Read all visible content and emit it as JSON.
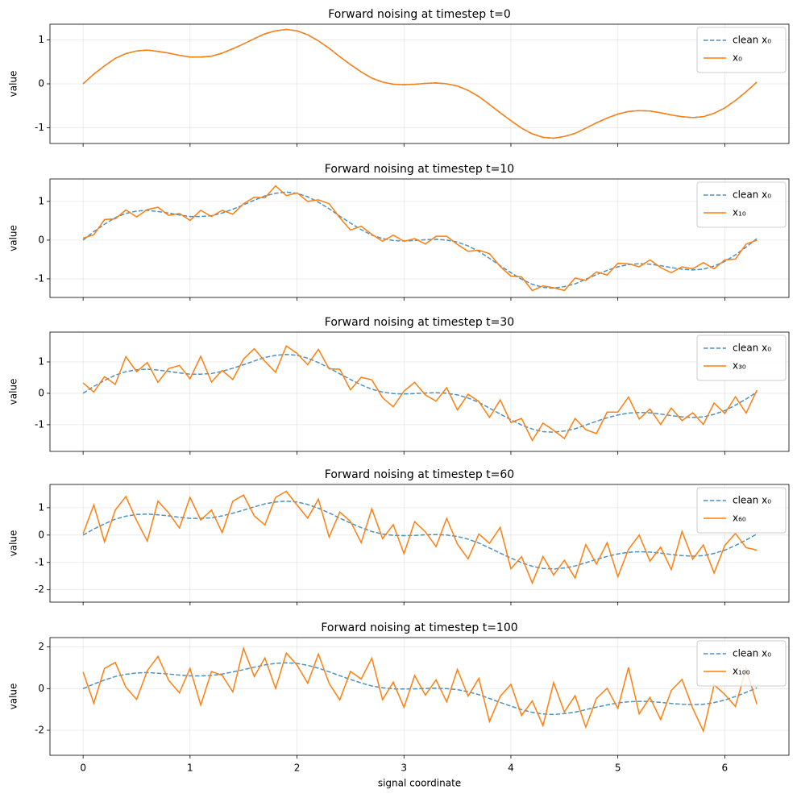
{
  "chart_data": [
    {
      "type": "line",
      "title": "Forward noising at timestep t=0",
      "ylabel": "value",
      "x": [
        0,
        0.1,
        0.2,
        0.3,
        0.4,
        0.5,
        0.6,
        0.7,
        0.8,
        0.9,
        1.0,
        1.1,
        1.2,
        1.3,
        1.4,
        1.5,
        1.6,
        1.7,
        1.8,
        1.9,
        2.0,
        2.1,
        2.2,
        2.3,
        2.4,
        2.5,
        2.6,
        2.7,
        2.8,
        2.9,
        3.0,
        3.1,
        3.2,
        3.3,
        3.4,
        3.5,
        3.6,
        3.7,
        3.8,
        3.9,
        4.0,
        4.1,
        4.2,
        4.3,
        4.4,
        4.5,
        4.6,
        4.7,
        4.8,
        4.9,
        5.0,
        5.1,
        5.2,
        5.3,
        5.4,
        5.5,
        5.6,
        5.7,
        5.8,
        5.9,
        6.0,
        6.1,
        6.2,
        6.3
      ],
      "series": [
        {
          "name": "clean x₀",
          "color": "#1f77b4",
          "dashed": true,
          "values": [
            0,
            0.22,
            0.41,
            0.58,
            0.69,
            0.75,
            0.77,
            0.74,
            0.7,
            0.65,
            0.61,
            0.61,
            0.63,
            0.7,
            0.8,
            0.91,
            1.03,
            1.14,
            1.21,
            1.24,
            1.21,
            1.12,
            0.98,
            0.81,
            0.62,
            0.44,
            0.27,
            0.13,
            0.04,
            -0.01,
            -0.02,
            -0.01,
            0.01,
            0.02,
            0,
            -0.05,
            -0.15,
            -0.29,
            -0.47,
            -0.66,
            -0.84,
            -1.01,
            -1.14,
            -1.22,
            -1.24,
            -1.2,
            -1.13,
            -1.01,
            -0.89,
            -0.78,
            -0.69,
            -0.63,
            -0.61,
            -0.62,
            -0.66,
            -0.71,
            -0.75,
            -0.77,
            -0.75,
            -0.67,
            -0.55,
            -0.38,
            -0.18,
            0.04
          ]
        },
        {
          "name": "x₀",
          "color": "#ff7f0e",
          "values": [
            0,
            0.22,
            0.41,
            0.58,
            0.69,
            0.75,
            0.77,
            0.74,
            0.7,
            0.65,
            0.61,
            0.61,
            0.63,
            0.7,
            0.8,
            0.91,
            1.03,
            1.14,
            1.21,
            1.24,
            1.21,
            1.12,
            0.98,
            0.81,
            0.62,
            0.44,
            0.27,
            0.13,
            0.04,
            -0.01,
            -0.02,
            -0.01,
            0.01,
            0.02,
            0,
            -0.05,
            -0.15,
            -0.29,
            -0.47,
            -0.66,
            -0.84,
            -1.01,
            -1.14,
            -1.22,
            -1.24,
            -1.2,
            -1.13,
            -1.01,
            -0.89,
            -0.78,
            -0.69,
            -0.63,
            -0.61,
            -0.62,
            -0.66,
            -0.71,
            -0.75,
            -0.77,
            -0.75,
            -0.67,
            -0.55,
            -0.38,
            -0.18,
            0.04
          ]
        }
      ],
      "xlim": [
        -0.31,
        6.6
      ],
      "xticks": [
        0,
        1,
        2,
        3,
        4,
        5,
        6
      ],
      "ylim": [
        -1.36,
        1.36
      ],
      "yticks": [
        -1,
        0,
        1
      ],
      "grid": true,
      "legend": "upper right"
    },
    {
      "type": "line",
      "title": "Forward noising at timestep t=10",
      "ylabel": "value",
      "x": [
        0,
        0.1,
        0.2,
        0.3,
        0.4,
        0.5,
        0.6,
        0.7,
        0.8,
        0.9,
        1.0,
        1.1,
        1.2,
        1.3,
        1.4,
        1.5,
        1.6,
        1.7,
        1.8,
        1.9,
        2.0,
        2.1,
        2.2,
        2.3,
        2.4,
        2.5,
        2.6,
        2.7,
        2.8,
        2.9,
        3.0,
        3.1,
        3.2,
        3.3,
        3.4,
        3.5,
        3.6,
        3.7,
        3.8,
        3.9,
        4.0,
        4.1,
        4.2,
        4.3,
        4.4,
        4.5,
        4.6,
        4.7,
        4.8,
        4.9,
        5.0,
        5.1,
        5.2,
        5.3,
        5.4,
        5.5,
        5.6,
        5.7,
        5.8,
        5.9,
        6.0,
        6.1,
        6.2,
        6.3
      ],
      "series": [
        {
          "name": "clean x₀",
          "color": "#1f77b4",
          "dashed": true,
          "values": [
            0,
            0.22,
            0.41,
            0.58,
            0.69,
            0.75,
            0.77,
            0.74,
            0.7,
            0.65,
            0.61,
            0.61,
            0.63,
            0.7,
            0.8,
            0.91,
            1.03,
            1.14,
            1.21,
            1.24,
            1.21,
            1.12,
            0.98,
            0.81,
            0.62,
            0.44,
            0.27,
            0.13,
            0.04,
            -0.01,
            -0.02,
            -0.01,
            0.01,
            0.02,
            0,
            -0.05,
            -0.15,
            -0.29,
            -0.47,
            -0.66,
            -0.84,
            -1.01,
            -1.14,
            -1.22,
            -1.24,
            -1.2,
            -1.13,
            -1.01,
            -0.89,
            -0.78,
            -0.69,
            -0.63,
            -0.61,
            -0.62,
            -0.66,
            -0.71,
            -0.75,
            -0.77,
            -0.75,
            -0.67,
            -0.55,
            -0.38,
            -0.18,
            0.04
          ]
        },
        {
          "name": "x₁₀",
          "color": "#ff7f0e",
          "values": [
            0.05,
            0.14,
            0.53,
            0.55,
            0.78,
            0.6,
            0.79,
            0.85,
            0.64,
            0.69,
            0.51,
            0.77,
            0.61,
            0.77,
            0.67,
            0.94,
            1.11,
            1.09,
            1.4,
            1.15,
            1.22,
            1.0,
            1.04,
            0.94,
            0.58,
            0.26,
            0.36,
            0.15,
            -0.03,
            0.13,
            -0.03,
            0.04,
            -0.1,
            0.1,
            0.1,
            -0.11,
            -0.29,
            -0.26,
            -0.35,
            -0.68,
            -0.93,
            -0.95,
            -1.3,
            -1.18,
            -1.23,
            -1.3,
            -0.98,
            -1.04,
            -0.82,
            -0.9,
            -0.6,
            -0.61,
            -0.69,
            -0.51,
            -0.71,
            -0.84,
            -0.69,
            -0.74,
            -0.58,
            -0.74,
            -0.51,
            -0.49,
            -0.1,
            0
          ]
        }
      ],
      "xlim": [
        -0.31,
        6.6
      ],
      "xticks": [
        0,
        1,
        2,
        3,
        4,
        5,
        6
      ],
      "ylim": [
        -1.48,
        1.58
      ],
      "yticks": [
        -1,
        0,
        1
      ],
      "grid": true,
      "legend": "upper right"
    },
    {
      "type": "line",
      "title": "Forward noising at timestep t=30",
      "ylabel": "value",
      "x": [
        0,
        0.1,
        0.2,
        0.3,
        0.4,
        0.5,
        0.6,
        0.7,
        0.8,
        0.9,
        1.0,
        1.1,
        1.2,
        1.3,
        1.4,
        1.5,
        1.6,
        1.7,
        1.8,
        1.9,
        2.0,
        2.1,
        2.2,
        2.3,
        2.4,
        2.5,
        2.6,
        2.7,
        2.8,
        2.9,
        3.0,
        3.1,
        3.2,
        3.3,
        3.4,
        3.5,
        3.6,
        3.7,
        3.8,
        3.9,
        4.0,
        4.1,
        4.2,
        4.3,
        4.4,
        4.5,
        4.6,
        4.7,
        4.8,
        4.9,
        5.0,
        5.1,
        5.2,
        5.3,
        5.4,
        5.5,
        5.6,
        5.7,
        5.8,
        5.9,
        6.0,
        6.1,
        6.2,
        6.3
      ],
      "series": [
        {
          "name": "clean x₀",
          "color": "#1f77b4",
          "dashed": true,
          "values": [
            0,
            0.22,
            0.41,
            0.58,
            0.69,
            0.75,
            0.77,
            0.74,
            0.7,
            0.65,
            0.61,
            0.61,
            0.63,
            0.7,
            0.8,
            0.91,
            1.03,
            1.14,
            1.21,
            1.24,
            1.21,
            1.12,
            0.98,
            0.81,
            0.62,
            0.44,
            0.27,
            0.13,
            0.04,
            -0.01,
            -0.02,
            -0.01,
            0.01,
            0.02,
            0,
            -0.05,
            -0.15,
            -0.29,
            -0.47,
            -0.66,
            -0.84,
            -1.01,
            -1.14,
            -1.22,
            -1.24,
            -1.2,
            -1.13,
            -1.01,
            -0.89,
            -0.78,
            -0.69,
            -0.63,
            -0.61,
            -0.62,
            -0.66,
            -0.71,
            -0.75,
            -0.77,
            -0.75,
            -0.67,
            -0.55,
            -0.38,
            -0.18,
            0.04
          ]
        },
        {
          "name": "x₃₀",
          "color": "#ff7f0e",
          "values": [
            0.33,
            0.04,
            0.53,
            0.28,
            1.17,
            0.69,
            0.98,
            0.35,
            0.79,
            0.89,
            0.46,
            1.18,
            0.36,
            0.73,
            0.44,
            1.09,
            1.42,
            1.02,
            0.67,
            1.51,
            1.27,
            0.91,
            1.4,
            0.78,
            0.77,
            0.11,
            0.51,
            0.43,
            -0.14,
            -0.43,
            0.07,
            0.35,
            -0.05,
            -0.25,
            0.18,
            -0.53,
            -0.03,
            -0.26,
            -0.77,
            -0.21,
            -0.93,
            -0.8,
            -1.5,
            -0.95,
            -1.18,
            -1.44,
            -0.8,
            -1.16,
            -1.28,
            -0.6,
            -0.6,
            -0.12,
            -0.82,
            -0.5,
            -0.99,
            -0.47,
            -0.87,
            -0.62,
            -0.99,
            -0.31,
            -0.64,
            -0.11,
            -0.63,
            0.1
          ]
        }
      ],
      "xlim": [
        -0.31,
        6.6
      ],
      "xticks": [
        0,
        1,
        2,
        3,
        4,
        5,
        6
      ],
      "ylim": [
        -1.85,
        1.95
      ],
      "yticks": [
        -1,
        0,
        1
      ],
      "grid": true,
      "legend": "upper right"
    },
    {
      "type": "line",
      "title": "Forward noising at timestep t=60",
      "ylabel": "value",
      "x": [
        0,
        0.1,
        0.2,
        0.3,
        0.4,
        0.5,
        0.6,
        0.7,
        0.8,
        0.9,
        1.0,
        1.1,
        1.2,
        1.3,
        1.4,
        1.5,
        1.6,
        1.7,
        1.8,
        1.9,
        2.0,
        2.1,
        2.2,
        2.3,
        2.4,
        2.5,
        2.6,
        2.7,
        2.8,
        2.9,
        3.0,
        3.1,
        3.2,
        3.3,
        3.4,
        3.5,
        3.6,
        3.7,
        3.8,
        3.9,
        4.0,
        4.1,
        4.2,
        4.3,
        4.4,
        4.5,
        4.6,
        4.7,
        4.8,
        4.9,
        5.0,
        5.1,
        5.2,
        5.3,
        5.4,
        5.5,
        5.6,
        5.7,
        5.8,
        5.9,
        6.0,
        6.1,
        6.2,
        6.3
      ],
      "series": [
        {
          "name": "clean x₀",
          "color": "#1f77b4",
          "dashed": true,
          "values": [
            0,
            0.22,
            0.41,
            0.58,
            0.69,
            0.75,
            0.77,
            0.74,
            0.7,
            0.65,
            0.61,
            0.61,
            0.63,
            0.7,
            0.8,
            0.91,
            1.03,
            1.14,
            1.21,
            1.24,
            1.21,
            1.12,
            0.98,
            0.81,
            0.62,
            0.44,
            0.27,
            0.13,
            0.04,
            -0.01,
            -0.02,
            -0.01,
            0.01,
            0.02,
            0,
            -0.05,
            -0.15,
            -0.29,
            -0.47,
            -0.66,
            -0.84,
            -1.01,
            -1.14,
            -1.22,
            -1.24,
            -1.2,
            -1.13,
            -1.01,
            -0.89,
            -0.78,
            -0.69,
            -0.63,
            -0.61,
            -0.62,
            -0.66,
            -0.71,
            -0.75,
            -0.77,
            -0.75,
            -0.67,
            -0.55,
            -0.38,
            -0.18,
            0.04
          ]
        },
        {
          "name": "x₆₀",
          "color": "#ff7f0e",
          "values": [
            0.05,
            1.1,
            -0.25,
            0.91,
            1.41,
            0.53,
            -0.22,
            1.24,
            0.81,
            0.26,
            1.38,
            0.55,
            0.91,
            0.09,
            1.24,
            1.46,
            0.7,
            0.37,
            1.38,
            1.6,
            1.1,
            0.62,
            1.31,
            -0.07,
            0.84,
            0.5,
            -0.28,
            0.96,
            -0.13,
            0.38,
            -0.68,
            0.49,
            0.12,
            -0.42,
            0.61,
            -0.33,
            -0.87,
            0.04,
            -0.3,
            0.28,
            -1.23,
            -0.79,
            -1.75,
            -0.78,
            -1.46,
            -0.92,
            -1.57,
            -0.35,
            -1.06,
            -0.28,
            -1.52,
            -0.52,
            0,
            -0.95,
            -0.44,
            -1.26,
            0.13,
            -0.88,
            -0.36,
            -1.39,
            -0.38,
            0.06,
            -0.46,
            -0.55
          ]
        }
      ],
      "xlim": [
        -0.31,
        6.6
      ],
      "xticks": [
        0,
        1,
        2,
        3,
        4,
        5,
        6
      ],
      "ylim": [
        -2.45,
        1.85
      ],
      "yticks": [
        -2,
        -1,
        0,
        1
      ],
      "grid": true,
      "legend": "upper right"
    },
    {
      "type": "line",
      "title": "Forward noising at timestep t=100",
      "ylabel": "value",
      "xlabel": "signal coordinate",
      "x": [
        0,
        0.1,
        0.2,
        0.3,
        0.4,
        0.5,
        0.6,
        0.7,
        0.8,
        0.9,
        1.0,
        1.1,
        1.2,
        1.3,
        1.4,
        1.5,
        1.6,
        1.7,
        1.8,
        1.9,
        2.0,
        2.1,
        2.2,
        2.3,
        2.4,
        2.5,
        2.6,
        2.7,
        2.8,
        2.9,
        3.0,
        3.1,
        3.2,
        3.3,
        3.4,
        3.5,
        3.6,
        3.7,
        3.8,
        3.9,
        4.0,
        4.1,
        4.2,
        4.3,
        4.4,
        4.5,
        4.6,
        4.7,
        4.8,
        4.9,
        5.0,
        5.1,
        5.2,
        5.3,
        5.4,
        5.5,
        5.6,
        5.7,
        5.8,
        5.9,
        6.0,
        6.1,
        6.2,
        6.3
      ],
      "series": [
        {
          "name": "clean x₀",
          "color": "#1f77b4",
          "dashed": true,
          "values": [
            0,
            0.22,
            0.41,
            0.58,
            0.69,
            0.75,
            0.77,
            0.74,
            0.7,
            0.65,
            0.61,
            0.61,
            0.63,
            0.7,
            0.8,
            0.91,
            1.03,
            1.14,
            1.21,
            1.24,
            1.21,
            1.12,
            0.98,
            0.81,
            0.62,
            0.44,
            0.27,
            0.13,
            0.04,
            -0.01,
            -0.02,
            -0.01,
            0.01,
            0.02,
            0,
            -0.05,
            -0.15,
            -0.29,
            -0.47,
            -0.66,
            -0.84,
            -1.01,
            -1.14,
            -1.22,
            -1.24,
            -1.2,
            -1.13,
            -1.01,
            -0.89,
            -0.78,
            -0.69,
            -0.63,
            -0.61,
            -0.62,
            -0.66,
            -0.71,
            -0.75,
            -0.77,
            -0.75,
            -0.67,
            -0.55,
            -0.38,
            -0.18,
            0.04
          ]
        },
        {
          "name": "x₁₀₀",
          "color": "#ff7f0e",
          "values": [
            0.8,
            -0.7,
            0.97,
            1.26,
            0.07,
            -0.52,
            0.86,
            1.55,
            0.4,
            -0.2,
            0.97,
            -0.79,
            0.82,
            0.64,
            -0.16,
            1.93,
            0.58,
            1.47,
            0.01,
            1.71,
            1.13,
            0.26,
            1.66,
            0.25,
            -0.54,
            0.83,
            0.46,
            1.46,
            -0.53,
            0.31,
            -0.9,
            0.63,
            -0.31,
            0.42,
            -0.64,
            0.92,
            -0.36,
            0.49,
            -1.58,
            -0.37,
            0.21,
            -1.29,
            -0.59,
            -1.78,
            0.29,
            -1.12,
            -0.34,
            -1.85,
            -0.47,
            0.02,
            -0.95,
            1.02,
            -1.21,
            -0.42,
            -1.49,
            -0.09,
            0.44,
            -0.94,
            -2.04,
            0.18,
            -0.28,
            -0.86,
            0.98,
            -0.75
          ]
        }
      ],
      "xlim": [
        -0.31,
        6.6
      ],
      "xticks": [
        0,
        1,
        2,
        3,
        4,
        5,
        6
      ],
      "ylim": [
        -3.2,
        2.45
      ],
      "yticks": [
        -2,
        0,
        2
      ],
      "grid": true,
      "legend": "upper right"
    }
  ]
}
